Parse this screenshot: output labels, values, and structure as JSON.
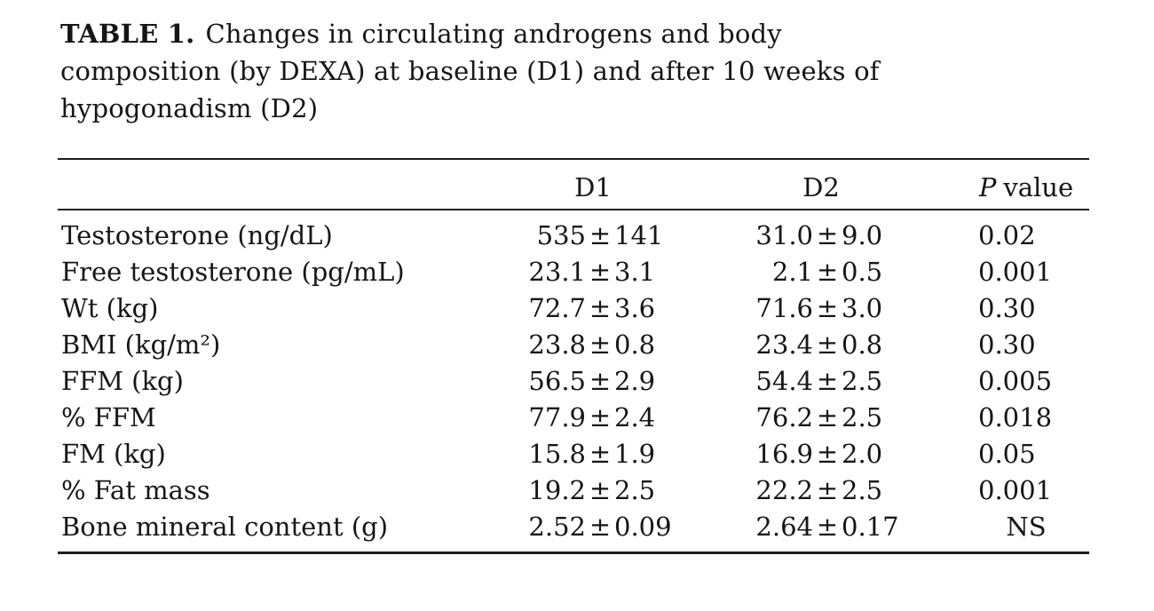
{
  "table": {
    "label": "TABLE 1.",
    "caption_lines": [
      "Changes in circulating androgens and body",
      "composition (by DEXA) at baseline (D1) and after 10 weeks of",
      "hypogonadism (D2)"
    ],
    "pm_sign": "±",
    "header": {
      "row_label": "",
      "d1": "D1",
      "d2": "D2",
      "p_italic": "P",
      "p_rest": "value"
    },
    "rows": [
      {
        "label": "Testosterone (ng/dL)",
        "d1_value": "535",
        "d1_err": "141",
        "d2_value": "31.0",
        "d2_err": "9.0",
        "p": "0.02"
      },
      {
        "label": "Free testosterone (pg/mL)",
        "d1_value": "23.1",
        "d1_err": "3.1",
        "d2_value": "2.1",
        "d2_err": "0.5",
        "p": "0.001"
      },
      {
        "label": "Wt (kg)",
        "d1_value": "72.7",
        "d1_err": "3.6",
        "d2_value": "71.6",
        "d2_err": "3.0",
        "p": "0.30"
      },
      {
        "label": "BMI (kg/m²)",
        "d1_value": "23.8",
        "d1_err": "0.8",
        "d2_value": "23.4",
        "d2_err": "0.8",
        "p": "0.30"
      },
      {
        "label": "FFM (kg)",
        "d1_value": "56.5",
        "d1_err": "2.9",
        "d2_value": "54.4",
        "d2_err": "2.5",
        "p": "0.005"
      },
      {
        "label": "% FFM",
        "d1_value": "77.9",
        "d1_err": "2.4",
        "d2_value": "76.2",
        "d2_err": "2.5",
        "p": "0.018"
      },
      {
        "label": "FM (kg)",
        "d1_value": "15.8",
        "d1_err": "1.9",
        "d2_value": "16.9",
        "d2_err": "2.0",
        "p": "0.05"
      },
      {
        "label": "% Fat mass",
        "d1_value": "19.2",
        "d1_err": "2.5",
        "d2_value": "22.2",
        "d2_err": "2.5",
        "p": "0.001"
      },
      {
        "label": "Bone mineral content (g)",
        "d1_value": "2.52",
        "d1_err": "0.09",
        "d2_value": "2.64",
        "d2_err": "0.17",
        "p": "NS"
      }
    ],
    "ns_value": "NS"
  }
}
